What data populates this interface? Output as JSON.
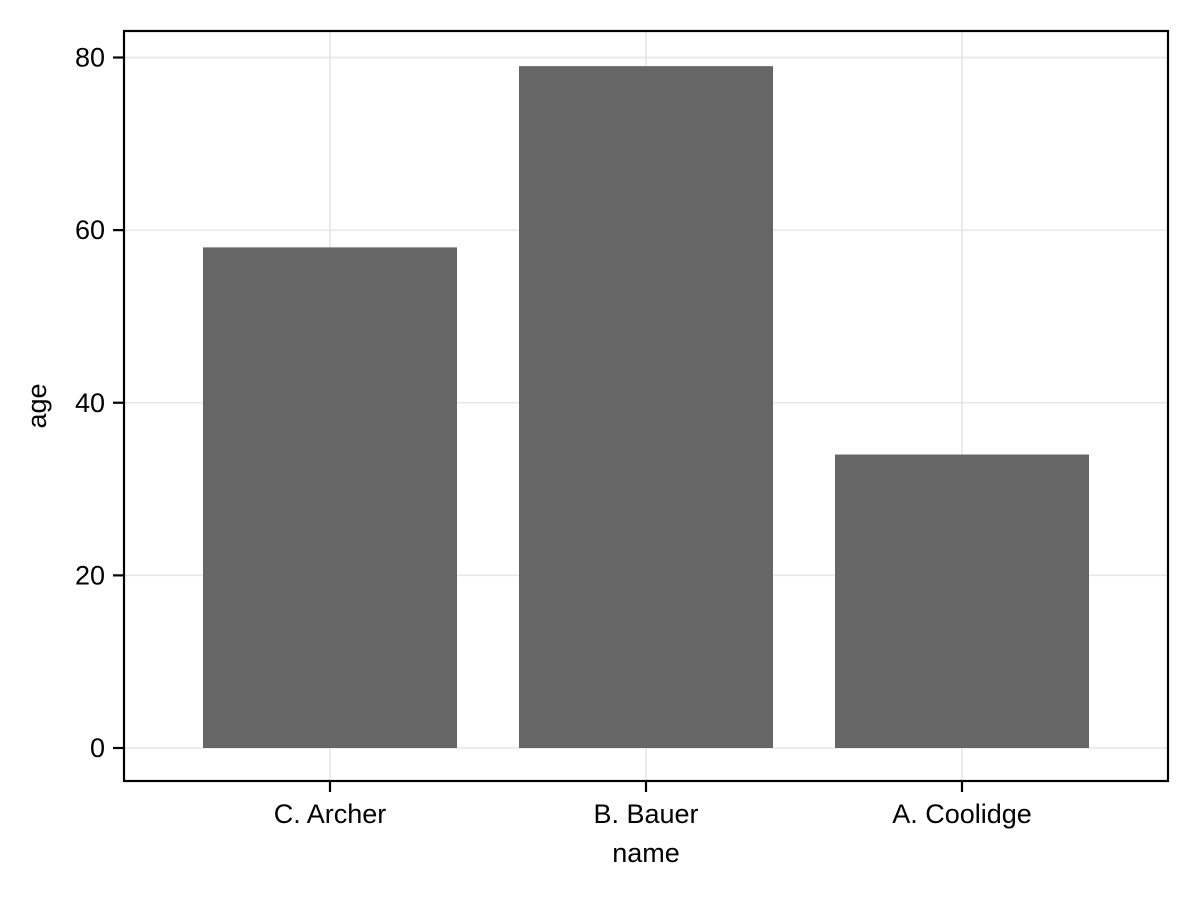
{
  "chart_data": {
    "type": "bar",
    "categories": [
      "C. Archer",
      "B. Bauer",
      "A. Coolidge"
    ],
    "values": [
      58,
      79,
      34
    ],
    "title": "",
    "xlabel": "name",
    "ylabel": "age",
    "ylim": [
      0,
      80
    ],
    "yticks": [
      0,
      20,
      40,
      60,
      80
    ],
    "grid": "on",
    "legend": "none",
    "bar_color": "#666666",
    "grid_color": "#e6e6e6",
    "border_color": "#000000",
    "tick_color": "#000000",
    "text_color": "#000000",
    "background_color": "#ffffff"
  }
}
